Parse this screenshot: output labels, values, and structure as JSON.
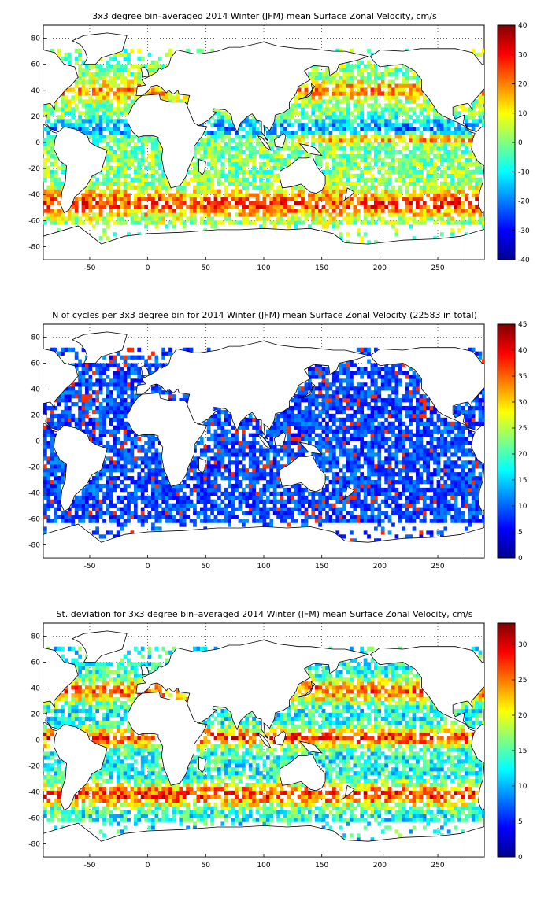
{
  "chart_data": [
    {
      "type": "heatmap",
      "title": "3x3 degree bin–averaged 2014 Winter (JFM) mean Surface Zonal Velocity, cm/s",
      "xlabel": "",
      "ylabel": "",
      "xlim": [
        -90,
        290
      ],
      "ylim": [
        -90,
        90
      ],
      "xticks": [
        "-50",
        "0",
        "50",
        "100",
        "150",
        "200",
        "250"
      ],
      "yticks": [
        "80",
        "60",
        "40",
        "20",
        "0",
        "-20",
        "-40",
        "-60",
        "-80"
      ],
      "colorbar": {
        "min": -40,
        "max": 40,
        "ticks": [
          "40",
          "30",
          "20",
          "10",
          "0",
          "-10",
          "-20",
          "-30",
          "-40"
        ]
      },
      "colormap": "jet",
      "bin_size_deg": 3,
      "grid": "dotted",
      "field": "velocity"
    },
    {
      "type": "heatmap",
      "title": "N of cycles per 3x3 degree bin for 2014 Winter (JFM) mean Surface Zonal Velocity (22583 in total)",
      "xlabel": "",
      "ylabel": "",
      "xlim": [
        -90,
        290
      ],
      "ylim": [
        -90,
        90
      ],
      "xticks": [
        "-50",
        "0",
        "50",
        "100",
        "150",
        "200",
        "250"
      ],
      "yticks": [
        "80",
        "60",
        "40",
        "20",
        "0",
        "-20",
        "-40",
        "-60",
        "-80"
      ],
      "colorbar": {
        "min": 0,
        "max": 45,
        "ticks": [
          "45",
          "40",
          "35",
          "30",
          "25",
          "20",
          "15",
          "10",
          "5",
          "0"
        ]
      },
      "colormap": "jet",
      "bin_size_deg": 3,
      "grid": "dotted",
      "total_cycles": 22583,
      "field": "count"
    },
    {
      "type": "heatmap",
      "title": "St. deviation for 3x3 degree bin–averaged 2014 Winter (JFM) mean Surface Zonal Velocity, cm/s",
      "xlabel": "",
      "ylabel": "",
      "xlim": [
        -90,
        290
      ],
      "ylim": [
        -90,
        90
      ],
      "xticks": [
        "-50",
        "0",
        "50",
        "100",
        "150",
        "200",
        "250"
      ],
      "yticks": [
        "80",
        "60",
        "40",
        "20",
        "0",
        "-20",
        "-40",
        "-60",
        "-80"
      ],
      "colorbar": {
        "min": 0,
        "max": 33,
        "ticks": [
          "30",
          "25",
          "20",
          "15",
          "10",
          "5",
          "0"
        ]
      },
      "colormap": "jet",
      "bin_size_deg": 3,
      "grid": "dotted",
      "field": "std"
    }
  ]
}
